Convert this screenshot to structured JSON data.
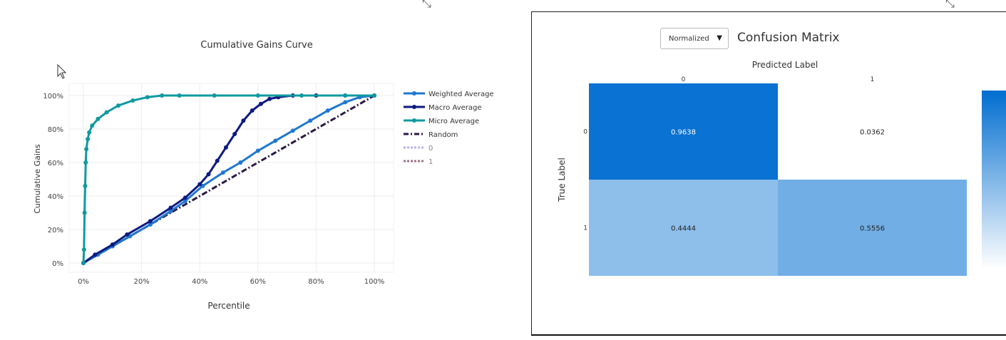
{
  "gains": {
    "title": "Cumulative Gains Curve",
    "xlabel": "Percentile",
    "ylabel": "Cumulative Gains",
    "x_ticks": [
      "0%",
      "20%",
      "40%",
      "60%",
      "80%",
      "100%"
    ],
    "y_ticks": [
      "0%",
      "20%",
      "40%",
      "60%",
      "80%",
      "100%"
    ],
    "legend": [
      {
        "label": "Weighted Average",
        "color": "#1f78d1",
        "style": "line-marker"
      },
      {
        "label": "Macro Average",
        "color": "#0d1a80",
        "style": "line-marker"
      },
      {
        "label": "Micro Average",
        "color": "#0f9aa0",
        "style": "line-marker"
      },
      {
        "label": "Random",
        "color": "#2b1a44",
        "style": "dashdot"
      },
      {
        "label": "0",
        "color": "#b7b3ea",
        "style": "dot"
      },
      {
        "label": "1",
        "color": "#a0728a",
        "style": "dot"
      }
    ]
  },
  "confusion": {
    "title": "Confusion Matrix",
    "dropdown_value": "Normalized",
    "xlabel": "Predicted Label",
    "ylabel": "True Label",
    "x_ticks": [
      "0",
      "1"
    ],
    "y_ticks": [
      "0",
      "1"
    ],
    "cell_labels": [
      [
        "0.9638",
        "0.0362"
      ],
      [
        "0.4444",
        "0.5556"
      ]
    ]
  },
  "chart_data": [
    {
      "type": "line",
      "title": "Cumulative Gains Curve",
      "xlabel": "Percentile",
      "ylabel": "Cumulative Gains",
      "xlim": [
        0,
        1
      ],
      "ylim": [
        0,
        1
      ],
      "grid": true,
      "legend_position": "right",
      "series": [
        {
          "name": "Weighted Average",
          "color": "#1f78d1",
          "x": [
            0,
            0.05,
            0.1,
            0.16,
            0.23,
            0.3,
            0.35,
            0.41,
            0.48,
            0.54,
            0.6,
            0.66,
            0.72,
            0.78,
            0.84,
            0.9,
            0.95,
            1.0
          ],
          "y": [
            0,
            0.05,
            0.1,
            0.16,
            0.23,
            0.31,
            0.37,
            0.46,
            0.54,
            0.6,
            0.67,
            0.73,
            0.79,
            0.85,
            0.91,
            0.96,
            0.99,
            1.0
          ]
        },
        {
          "name": "Macro Average",
          "color": "#0d1a80",
          "x": [
            0,
            0.04,
            0.1,
            0.15,
            0.23,
            0.3,
            0.35,
            0.4,
            0.43,
            0.46,
            0.49,
            0.52,
            0.55,
            0.58,
            0.61,
            0.64,
            0.67,
            0.72,
            0.8,
            0.9,
            1.0
          ],
          "y": [
            0,
            0.05,
            0.11,
            0.17,
            0.25,
            0.33,
            0.39,
            0.47,
            0.53,
            0.61,
            0.69,
            0.77,
            0.85,
            0.91,
            0.95,
            0.98,
            0.99,
            1.0,
            1.0,
            1.0,
            1.0
          ]
        },
        {
          "name": "Micro Average",
          "color": "#0f9aa0",
          "x": [
            0,
            0.002,
            0.004,
            0.006,
            0.008,
            0.01,
            0.015,
            0.02,
            0.03,
            0.05,
            0.08,
            0.12,
            0.17,
            0.22,
            0.27,
            0.33,
            0.45,
            0.6,
            0.75,
            0.9,
            1.0
          ],
          "y": [
            0,
            0.08,
            0.3,
            0.46,
            0.6,
            0.68,
            0.74,
            0.78,
            0.82,
            0.86,
            0.9,
            0.94,
            0.97,
            0.99,
            1.0,
            1.0,
            1.0,
            1.0,
            1.0,
            1.0,
            1.0
          ]
        },
        {
          "name": "Random",
          "color": "#2b1a44",
          "x": [
            0,
            1
          ],
          "y": [
            0,
            1
          ]
        },
        {
          "name": "0",
          "color": "#b7b3ea",
          "x": [],
          "y": []
        },
        {
          "name": "1",
          "color": "#a0728a",
          "x": [],
          "y": []
        }
      ]
    },
    {
      "type": "heatmap",
      "title": "Confusion Matrix",
      "xlabel": "Predicted Label",
      "ylabel": "True Label",
      "x_categories": [
        "0",
        "1"
      ],
      "y_categories": [
        "0",
        "1"
      ],
      "values": [
        [
          0.9638,
          0.0362
        ],
        [
          0.4444,
          0.5556
        ]
      ],
      "colorscale": [
        "#ffffff",
        "#006dd0"
      ]
    }
  ]
}
